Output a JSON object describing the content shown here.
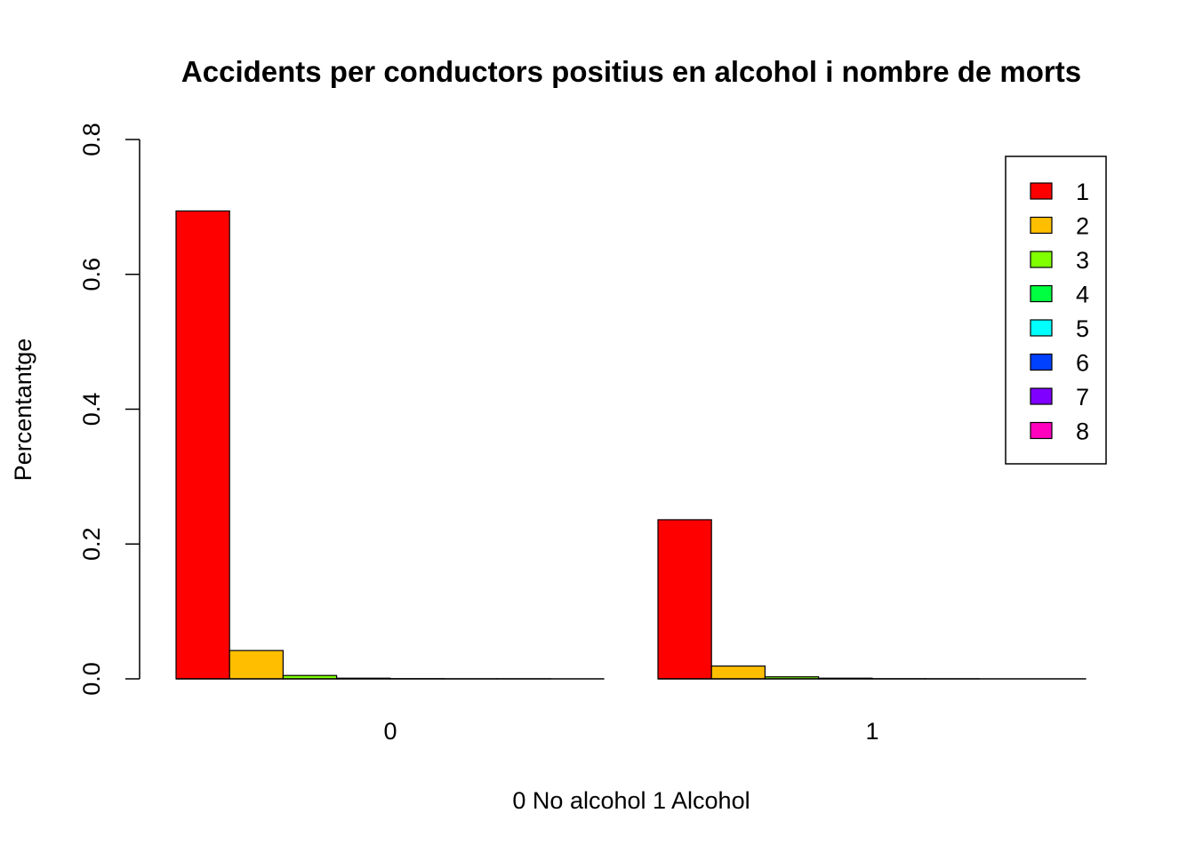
{
  "chart_data": {
    "type": "bar",
    "title": "Accidents per conductors positius en alcohol i nombre de morts",
    "xlabel": "0 No alcohol 1 Alcohol",
    "ylabel": "Percentantge",
    "categories": [
      "0",
      "1"
    ],
    "ylim": [
      0,
      0.8
    ],
    "yticks": [
      "0.0",
      "0.2",
      "0.4",
      "0.6",
      "0.8"
    ],
    "grid": false,
    "legend_position": "top-right",
    "series": [
      {
        "name": "1",
        "color": "#FF0000",
        "values": [
          0.694,
          0.236
        ]
      },
      {
        "name": "2",
        "color": "#FFBF00",
        "values": [
          0.042,
          0.019
        ]
      },
      {
        "name": "3",
        "color": "#80FF00",
        "values": [
          0.005,
          0.003
        ]
      },
      {
        "name": "4",
        "color": "#00FF40",
        "values": [
          0.001,
          0.001
        ]
      },
      {
        "name": "5",
        "color": "#00FFFF",
        "values": [
          0.0003,
          0.0002
        ]
      },
      {
        "name": "6",
        "color": "#0040FF",
        "values": [
          0.0001,
          0.0001
        ]
      },
      {
        "name": "7",
        "color": "#8000FF",
        "values": [
          0.0001,
          0.0
        ]
      },
      {
        "name": "8",
        "color": "#FF00BF",
        "values": [
          0.0,
          0.0
        ]
      }
    ]
  }
}
